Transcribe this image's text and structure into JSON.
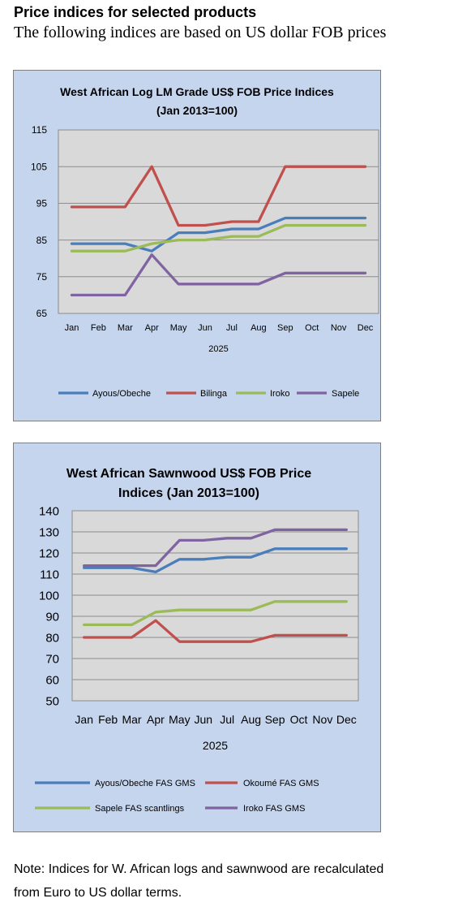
{
  "header": {
    "title": "Price indices for selected products",
    "subtitle": "The following indices are based on US dollar FOB prices"
  },
  "note": {
    "line1": "Note: Indices for W. African logs and sawnwood are recalculated",
    "line2": "from Euro to US dollar terms."
  },
  "colors": {
    "panel_bg": "#c6d5ee",
    "plot_bg": "#d9d9d9",
    "series_blue": "#4a7ebb",
    "series_red": "#c0504d",
    "series_green": "#9bbb59",
    "series_purple": "#8064a2"
  },
  "chart_data": [
    {
      "type": "line",
      "title_line1": "West African Log LM Grade US$ FOB Price Indices",
      "title_line2": "(Jan 2013=100)",
      "xlabel": "2025",
      "ylabel": "",
      "ylim": [
        65,
        115
      ],
      "yticks": [
        65,
        75,
        85,
        95,
        105,
        115
      ],
      "grid": true,
      "legend": "bottom",
      "categories": [
        "Jan",
        "Feb",
        "Mar",
        "Apr",
        "May",
        "Jun",
        "Jul",
        "Aug",
        "Sep",
        "Oct",
        "Nov",
        "Dec"
      ],
      "series": [
        {
          "name": "Ayous/Obeche",
          "color": "#4a7ebb",
          "values": [
            84,
            84,
            84,
            82,
            87,
            87,
            88,
            88,
            91,
            91,
            91,
            91
          ]
        },
        {
          "name": "Bilinga",
          "color": "#c0504d",
          "values": [
            94,
            94,
            94,
            105,
            89,
            89,
            90,
            90,
            105,
            105,
            105,
            105
          ]
        },
        {
          "name": "Iroko",
          "color": "#9bbb59",
          "values": [
            82,
            82,
            82,
            84,
            85,
            85,
            86,
            86,
            89,
            89,
            89,
            89
          ]
        },
        {
          "name": "Sapele",
          "color": "#8064a2",
          "values": [
            70,
            70,
            70,
            81,
            73,
            73,
            73,
            73,
            76,
            76,
            76,
            76
          ]
        }
      ]
    },
    {
      "type": "line",
      "title_line1": "West African Sawnwood US$ FOB Price",
      "title_line2": "Indices (Jan 2013=100)",
      "xlabel": "2025",
      "ylabel": "",
      "ylim": [
        50,
        140
      ],
      "yticks": [
        50,
        60,
        70,
        80,
        90,
        100,
        110,
        120,
        130,
        140
      ],
      "grid": true,
      "legend": "bottom",
      "categories": [
        "Jan",
        "Feb",
        "Mar",
        "Apr",
        "May",
        "Jun",
        "Jul",
        "Aug",
        "Sep",
        "Oct",
        "Nov",
        "Dec"
      ],
      "series": [
        {
          "name": "Ayous/Obeche  FAS GMS",
          "color": "#4a7ebb",
          "values": [
            113,
            113,
            113,
            111,
            117,
            117,
            118,
            118,
            122,
            122,
            122,
            122
          ]
        },
        {
          "name": "Okoumé  FAS GMS",
          "color": "#c0504d",
          "values": [
            80,
            80,
            80,
            88,
            78,
            78,
            78,
            78,
            81,
            81,
            81,
            81
          ]
        },
        {
          "name": "Sapele  FAS scantlings",
          "color": "#9bbb59",
          "values": [
            86,
            86,
            86,
            92,
            93,
            93,
            93,
            93,
            97,
            97,
            97,
            97
          ]
        },
        {
          "name": "Iroko FAS GMS",
          "color": "#8064a2",
          "values": [
            114,
            114,
            114,
            114,
            126,
            126,
            127,
            127,
            131,
            131,
            131,
            131
          ]
        }
      ]
    }
  ]
}
